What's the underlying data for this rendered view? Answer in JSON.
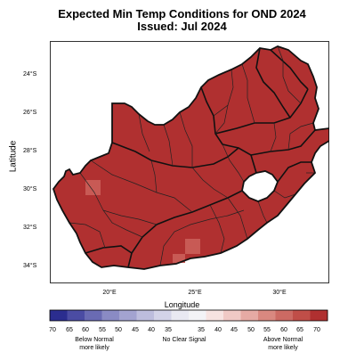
{
  "title_line1": "Expected Min Temp Conditions for OND 2024",
  "title_line2": "Issued: Jul 2024",
  "y_axis_label": "Latitude",
  "x_axis_label": "Longitude",
  "y_ticks": [
    "24°S",
    "26°S",
    "28°S",
    "30°S",
    "32°S",
    "34°S"
  ],
  "x_ticks": [
    "20°E",
    "25°E",
    "30°E"
  ],
  "colors": {
    "above_normal_fill": "#b03030",
    "boundary": "#111111",
    "lesotho": "#ffffff",
    "light_cell": "#c85a55"
  },
  "legend": {
    "values": [
      "70",
      "65",
      "60",
      "55",
      "50",
      "45",
      "40",
      "35",
      "35",
      "40",
      "45",
      "50",
      "55",
      "60",
      "65",
      "70"
    ],
    "colors": [
      "#2b2d8f",
      "#4b4ca3",
      "#6a6bb3",
      "#8a8bc4",
      "#a3a3d0",
      "#bdbddd",
      "#d3d3e8",
      "#e9e9f2",
      "#f3f3f6",
      "#f7e3e1",
      "#f0c9c5",
      "#e6aaa4",
      "#d98880",
      "#cc6a63",
      "#c04e48",
      "#b03030"
    ],
    "below_caption_line1": "Below Normal",
    "below_caption_line2": "more likely",
    "neutral_caption": "No Clear Signal",
    "above_caption_line1": "Above Normal",
    "above_caption_line2": "more likely"
  }
}
